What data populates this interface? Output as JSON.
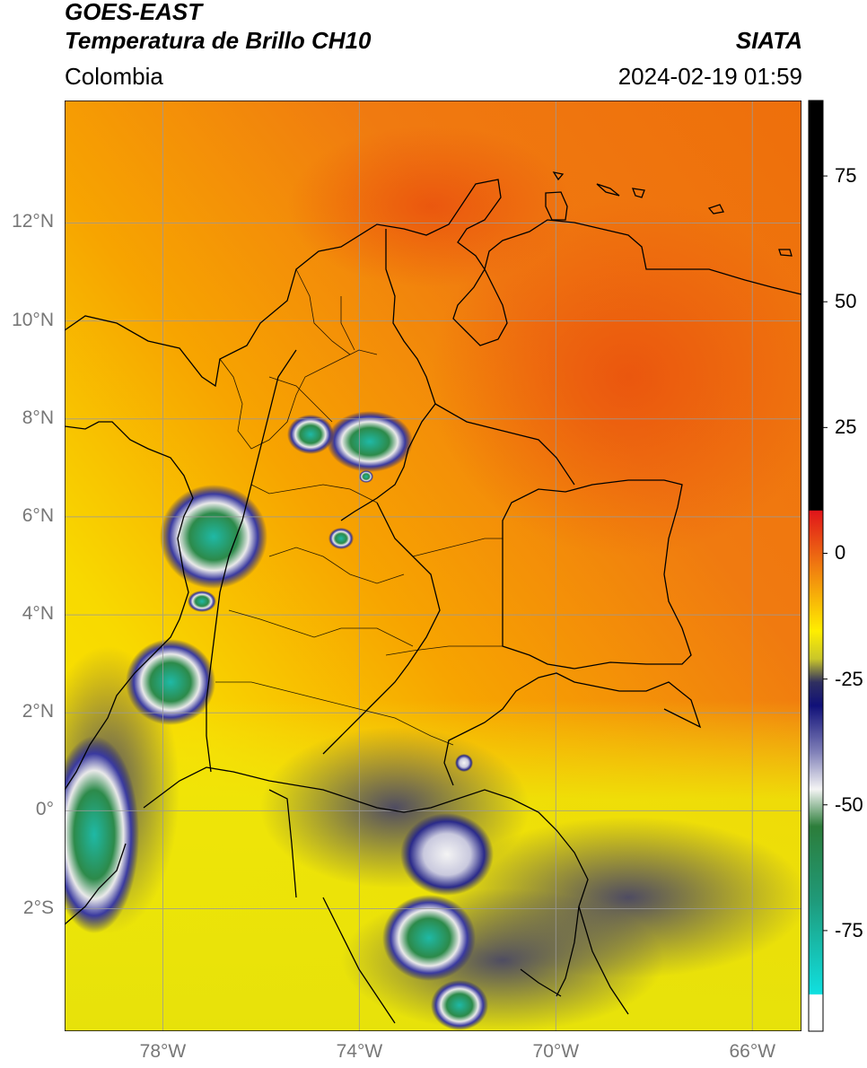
{
  "header": {
    "satellite": "GOES-EAST",
    "product": "Temperatura de Brillo CH10",
    "organization": "SIATA",
    "region": "Colombia",
    "timestamp": "2024-02-19 01:59"
  },
  "axes": {
    "lat_labels": [
      "12°N",
      "10°N",
      "8°N",
      "6°N",
      "4°N",
      "2°N",
      "0°",
      "2°S"
    ],
    "lat_values": [
      12,
      10,
      8,
      6,
      4,
      2,
      0,
      -2
    ],
    "lon_labels": [
      "78°W",
      "74°W",
      "70°W",
      "66°W"
    ],
    "lon_values": [
      -78,
      -74,
      -70,
      -66
    ],
    "lon_range": [
      -80,
      -65
    ],
    "lat_range": [
      -4.5,
      14.5
    ],
    "grid": true
  },
  "colorbar": {
    "tick_labels": [
      "75",
      "50",
      "25",
      "0",
      "-25",
      "-50",
      "-75"
    ],
    "tick_values": [
      75,
      50,
      25,
      0,
      -25,
      -50,
      -75
    ],
    "range": [
      -95,
      90
    ],
    "colors": {
      "warm_top": "#000000",
      "red": "#e0151a",
      "orange": "#f07a10",
      "yellow": "#ffee00",
      "olive": "#c9c62a",
      "navy": "#101078",
      "white": "#f4f4f4",
      "green": "#2c7d3a",
      "teal": "#1fb9a6",
      "cyan": "#10e0e0"
    }
  }
}
